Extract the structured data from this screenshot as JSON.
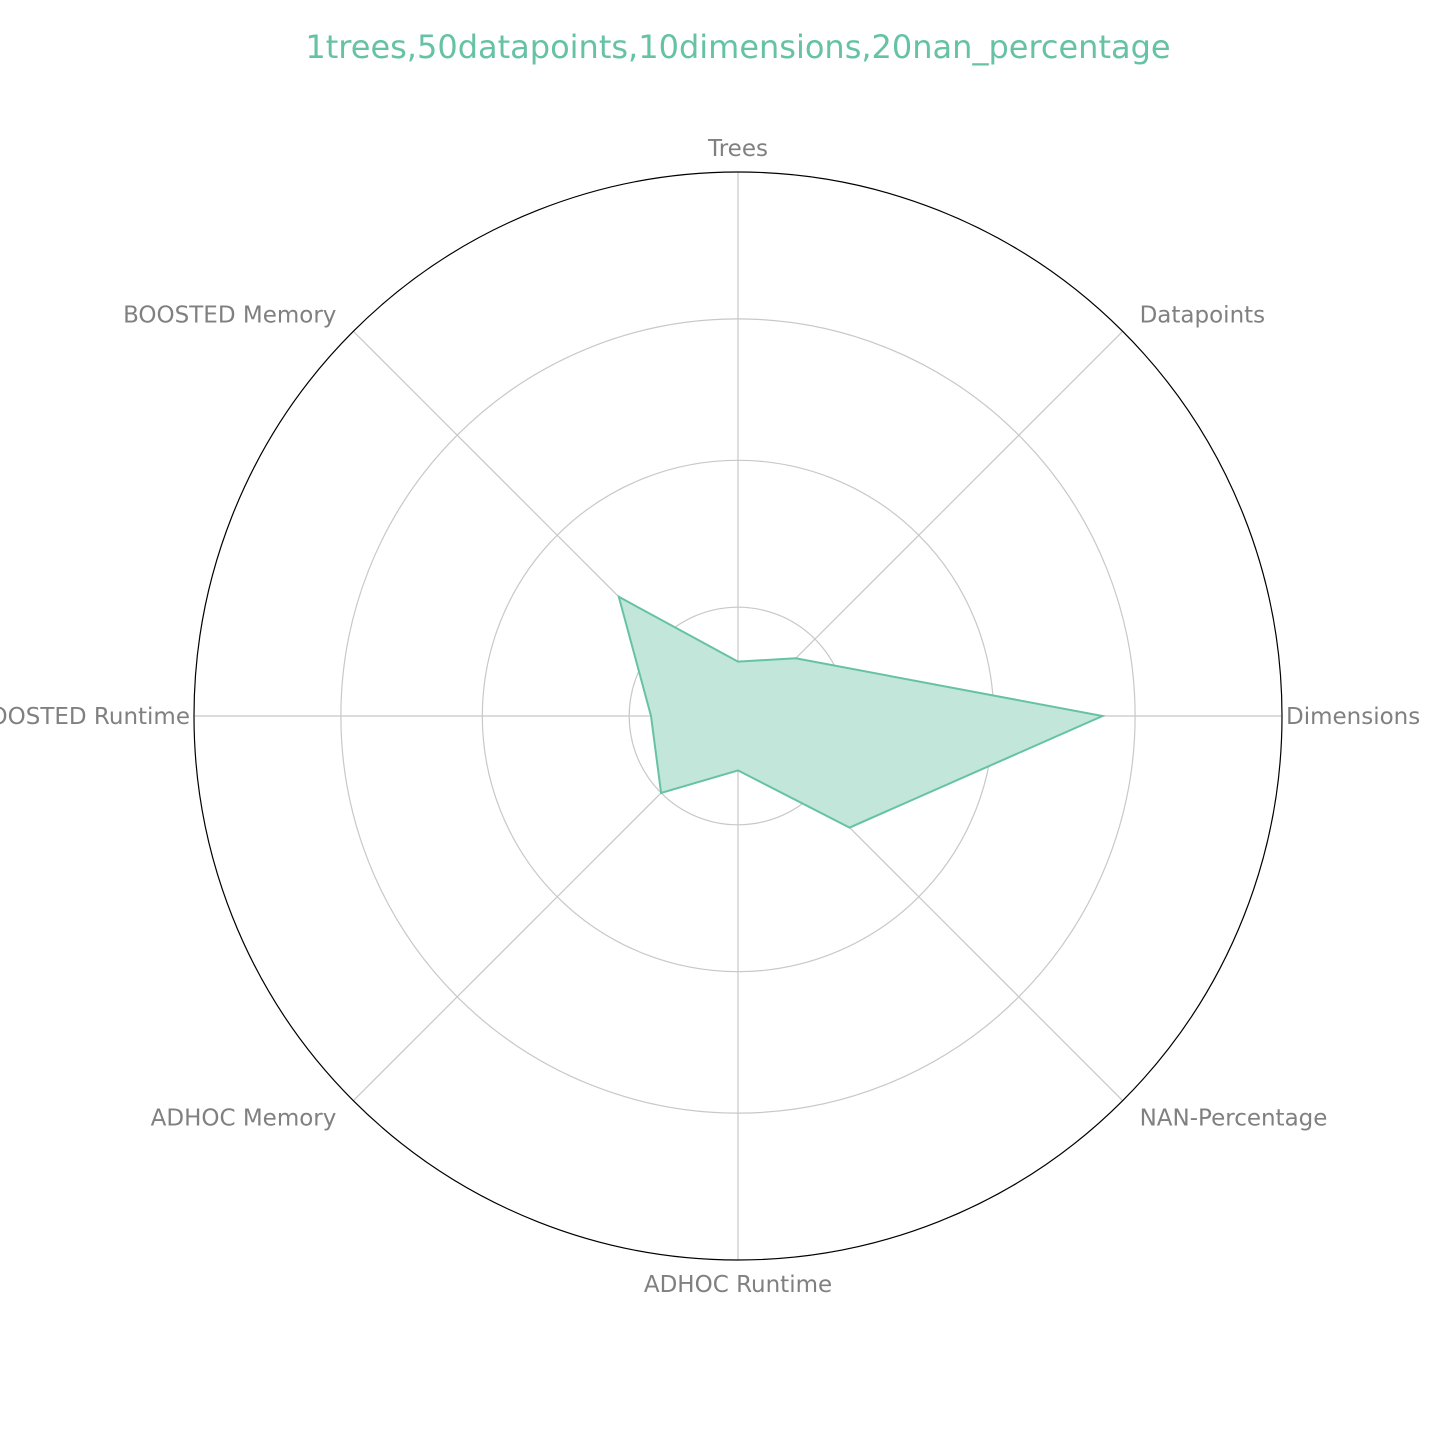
{
  "chart_data": {
    "type": "radar",
    "title": "1trees,50datapoints,10dimensions,20nan_percentage",
    "axes": [
      "Trees",
      "Datapoints",
      "Dimensions",
      "NAN-Percentage",
      "ADHOC Runtime",
      "ADHOC Memory",
      "BOOSTED Runtime",
      "BOOSTED Memory"
    ],
    "values": [
      0.1,
      0.15,
      0.67,
      0.29,
      0.1,
      0.2,
      0.16,
      0.31
    ],
    "rlim": [
      0,
      1
    ],
    "rticks": [
      0.2,
      0.47,
      0.73
    ],
    "grid": true,
    "legend": false,
    "colors": {
      "series": "#66c2a5",
      "fill": "#c2e6da",
      "label": "#808080",
      "grid": "#c8c8c8",
      "outer": "#000000"
    }
  }
}
